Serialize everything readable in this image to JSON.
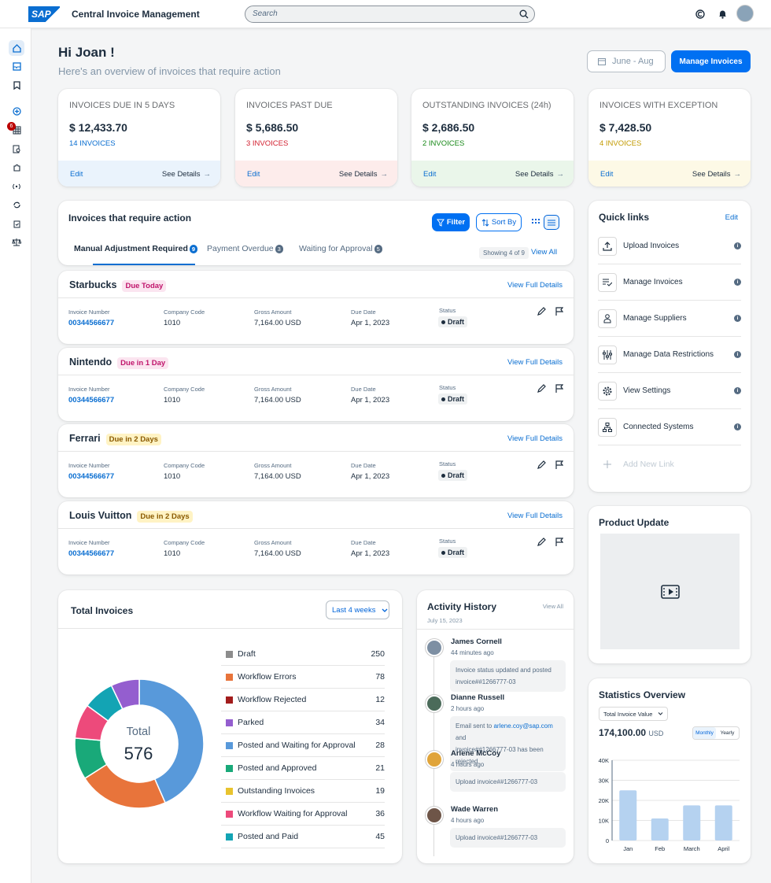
{
  "app": {
    "logo": "SAP",
    "title": "Central Invoice Management",
    "search_placeholder": "Search"
  },
  "greeting": {
    "title": "Hi Joan !",
    "subtitle": "Here's an overview of invoices that require action",
    "date_range": "June - Aug",
    "manage_button": "Manage Invoices"
  },
  "kpis": [
    {
      "title": "INVOICES DUE IN 5 DAYS",
      "value": "$ 12,433.70",
      "sub": "14 INVOICES",
      "edit": "Edit",
      "details": "See Details",
      "sub_color": "#0a6ed1",
      "foot_color": "#eaf3fc"
    },
    {
      "title": "INVOICES PAST DUE",
      "value": "$ 5,686.50",
      "sub": "3 INVOICES",
      "edit": "Edit",
      "details": "See Details",
      "sub_color": "#d32030",
      "foot_color": "#fdeceb"
    },
    {
      "title": "OUTSTANDING INVOICES (24h)",
      "value": "$ 2,686.50",
      "sub": "2 INVOICES",
      "edit": "Edit",
      "details": "See Details",
      "sub_color": "#188918",
      "foot_color": "#eaf6ea"
    },
    {
      "title": "INVOICES WITH EXCEPTION",
      "value": "$ 7,428.50",
      "sub": "4 INVOICES",
      "edit": "Edit",
      "details": "See Details",
      "sub_color": "#c29a00",
      "foot_color": "#fdf9e6"
    }
  ],
  "action": {
    "title": "Invoices that require action",
    "filter": "Filter",
    "sort": "Sort By",
    "tabs": [
      {
        "label": "Manual Adjustment Required",
        "count": "9"
      },
      {
        "label": "Payment Overdue",
        "count": "3"
      },
      {
        "label": "Waiting for Approval",
        "count": "5"
      }
    ],
    "showing": "Showing 4 of 9",
    "view_all": "View All"
  },
  "invoices": [
    {
      "company": "Starbucks",
      "due": "Due Today",
      "due_bg": "#fbe5f0",
      "due_fg": "#c0146b",
      "view": "View Full Details",
      "labels": {
        "num": "Invoice Number",
        "code": "Company Code",
        "amount": "Gross Amount",
        "date": "Due Date",
        "status": "Status"
      },
      "num": "00344566677",
      "code": "1010",
      "amount": "7,164.00 USD",
      "date": "Apr 1, 2023",
      "status": "Draft"
    },
    {
      "company": "Nintendo",
      "due": "Due in 1 Day",
      "due_bg": "#fbe5f0",
      "due_fg": "#c0146b",
      "view": "View Full Details",
      "labels": {
        "num": "Invoice Number",
        "code": "Company Code",
        "amount": "Gross Amount",
        "date": "Due Date",
        "status": "Status"
      },
      "num": "00344566677",
      "code": "1010",
      "amount": "7,164.00 USD",
      "date": "Apr 1, 2023",
      "status": "Draft"
    },
    {
      "company": "Ferrari",
      "due": "Due in 2 Days",
      "due_bg": "#fff3c4",
      "due_fg": "#8a5a00",
      "view": "View Full Details",
      "labels": {
        "num": "Invoice Number",
        "code": "Company Code",
        "amount": "Gross Amount",
        "date": "Due Date",
        "status": "Status"
      },
      "num": "00344566677",
      "code": "1010",
      "amount": "7,164.00 USD",
      "date": "Apr 1, 2023",
      "status": "Draft"
    },
    {
      "company": "Louis Vuitton",
      "due": "Due in 2 Days",
      "due_bg": "#fff3c4",
      "due_fg": "#8a5a00",
      "view": "View Full Details",
      "labels": {
        "num": "Invoice Number",
        "code": "Company Code",
        "amount": "Gross Amount",
        "date": "Due Date",
        "status": "Status"
      },
      "num": "00344566677",
      "code": "1010",
      "amount": "7,164.00 USD",
      "date": "Apr 1, 2023",
      "status": "Draft"
    }
  ],
  "quicklinks": {
    "title": "Quick links",
    "edit": "Edit",
    "items": [
      {
        "label": "Upload Invoices",
        "icon": "upload-icon"
      },
      {
        "label": "Manage Invoices",
        "icon": "list-check-icon"
      },
      {
        "label": "Manage Suppliers",
        "icon": "person-icon"
      },
      {
        "label": "Manage Data Restrictions",
        "icon": "sliders-icon"
      },
      {
        "label": "View Settings",
        "icon": "gear-icon"
      },
      {
        "label": "Connected Systems",
        "icon": "hierarchy-icon"
      }
    ],
    "add": "Add New Link"
  },
  "product_update": {
    "title": "Product Update"
  },
  "total": {
    "title": "Total Invoices",
    "range": "Last 4 weeks",
    "center_label": "Total",
    "center_value": "576"
  },
  "chart_data": [
    {
      "type": "pie",
      "title": "Total Invoices",
      "categories": [
        "Draft",
        "Workflow Errors",
        "Workflow Rejected",
        "Parked",
        "Posted and Waiting for Approval",
        "Posted and Approved",
        "Outstanding Invoices",
        "Workflow Waiting for Approval",
        "Posted and Paid"
      ],
      "values": [
        250,
        78,
        12,
        34,
        28,
        21,
        19,
        36,
        45
      ],
      "colors": [
        "#8c8c8c",
        "#e8743b",
        "#a21c1c",
        "#945ecf",
        "#5899da",
        "#19a979",
        "#e8c32e",
        "#ed4a7b",
        "#13a4b4"
      ],
      "donut_colors": [
        "#5899da",
        "#e8743b",
        "#19a979",
        "#ed4a7b",
        "#13a4b4",
        "#945ecf"
      ],
      "donut_values": [
        250,
        130,
        60,
        50,
        45,
        41
      ]
    },
    {
      "type": "bar",
      "title": "Statistics Overview",
      "categories": [
        "Jan",
        "Feb",
        "March",
        "April"
      ],
      "values": [
        25000,
        11000,
        17500,
        17500
      ],
      "yticks": [
        "40K",
        "30K",
        "20K",
        "10K",
        "0"
      ],
      "ylim": [
        0,
        40000
      ],
      "color": "#b5d2f0"
    }
  ],
  "activity": {
    "title": "Activity History",
    "view_all": "View All",
    "date": "July 15, 2023",
    "items": [
      {
        "name": "James Cornell",
        "time": "44 minutes ago",
        "msg1": "Invoice status updated and posted",
        "msg2": "invoice#",
        "msg3": "#1266777-03",
        "av": "#7d8fa3"
      },
      {
        "name": "Dianne Russell",
        "time": "2 hours ago",
        "msg1": "Email sent to ",
        "link": "arlene.coy@sap.com",
        "msg1b": " and",
        "msg2": "invoice#",
        "msg3": "#1266777-03 has been rejected",
        "av": "#4b6b5a"
      },
      {
        "name": "Arlene McCoy",
        "time": "4 hours ago",
        "msg1": "Upload invoice#",
        "msg3": "#1266777-03",
        "av": "#e0a43a"
      },
      {
        "name": "Wade Warren",
        "time": "4 hours ago",
        "msg1": "Upload invoice#",
        "msg3": "#1266777-03",
        "av": "#6e5548"
      }
    ]
  },
  "stats": {
    "title": "Statistics Overview",
    "dropdown": "Total Invoice Value",
    "value": "174,100.00",
    "unit": "USD",
    "monthly": "Monthly",
    "yearly": "Yearly"
  },
  "sidebar_badge": "6"
}
